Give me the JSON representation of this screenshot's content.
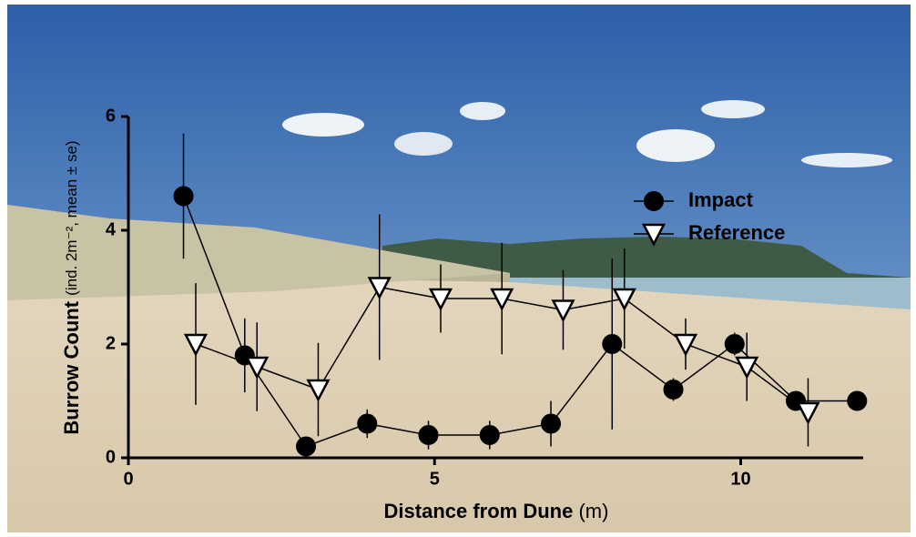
{
  "chart_data": {
    "type": "line",
    "x_label": "Distance from Dune",
    "x_label_unit": "(m)",
    "y_label": "Burrow Count",
    "y_label_note": "(ind. 2m⁻², mean ± se)",
    "xlim": [
      0,
      12
    ],
    "xticks": [
      0,
      5,
      10
    ],
    "ylim": [
      0,
      6
    ],
    "yticks": [
      0,
      2,
      4,
      6
    ],
    "legend": "upper right",
    "series": [
      {
        "name": "Impact",
        "marker": "circle",
        "color": "#000000",
        "x": [
          0.9,
          1.9,
          2.9,
          3.9,
          4.9,
          5.9,
          6.9,
          7.9,
          8.9,
          9.9,
          10.9,
          11.9
        ],
        "values": [
          4.6,
          1.8,
          0.2,
          0.6,
          0.4,
          0.4,
          0.6,
          2.0,
          1.2,
          2.0,
          1.0,
          1.0
        ],
        "errors": [
          1.1,
          0.65,
          0.1,
          0.25,
          0.25,
          0.25,
          0.4,
          1.5,
          0.2,
          0.2,
          0.15,
          0.1
        ]
      },
      {
        "name": "Reference",
        "marker": "triangle-down",
        "color": "#ffffff",
        "x": [
          1.1,
          2.1,
          3.1,
          4.1,
          5.1,
          6.1,
          7.1,
          8.1,
          9.1,
          10.1,
          11.1
        ],
        "values": [
          2.0,
          1.6,
          1.2,
          3.0,
          2.8,
          2.8,
          2.6,
          2.8,
          2.0,
          1.6,
          0.8
        ],
        "errors": [
          1.07,
          0.78,
          0.82,
          1.28,
          0.6,
          0.98,
          0.7,
          0.88,
          0.45,
          0.6,
          0.6
        ]
      }
    ]
  }
}
